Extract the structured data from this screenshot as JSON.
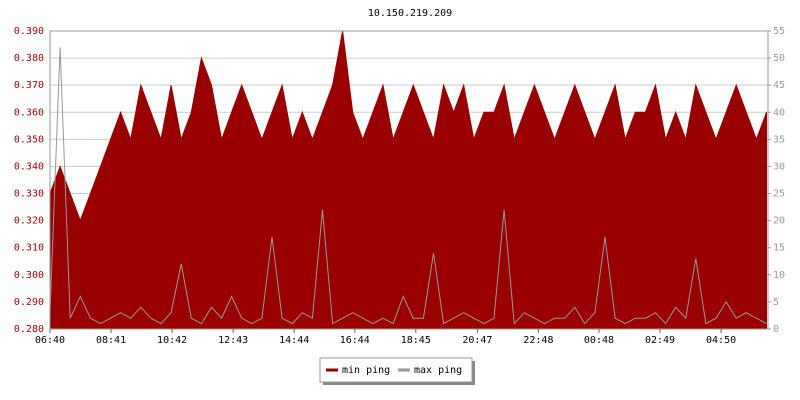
{
  "chart_data": {
    "type": "area",
    "title": "10.150.219.209",
    "x": [
      0,
      20,
      40,
      60,
      80,
      100,
      120,
      140,
      160,
      180,
      200,
      220,
      240,
      260,
      280,
      300,
      320,
      340,
      360,
      380,
      400,
      420,
      440,
      460,
      480,
      500,
      520,
      540,
      560,
      580,
      600,
      620,
      640,
      660,
      680,
      700,
      720,
      740,
      760,
      780,
      800,
      820,
      840,
      860,
      880,
      900,
      920,
      940,
      960,
      980,
      1000,
      1020,
      1040,
      1060,
      1080,
      1100,
      1120,
      1140,
      1160,
      1180,
      1200,
      1220,
      1240,
      1260,
      1280,
      1300,
      1320,
      1340,
      1360,
      1380,
      1400,
      1420
    ],
    "xlim": [
      0,
      1423
    ],
    "xticks": [
      {
        "value": 0,
        "label": "06:40"
      },
      {
        "value": 121,
        "label": "08:41"
      },
      {
        "value": 242,
        "label": "10:42"
      },
      {
        "value": 363,
        "label": "12:43"
      },
      {
        "value": 484,
        "label": "14:44"
      },
      {
        "value": 604,
        "label": "16:44"
      },
      {
        "value": 725,
        "label": "18:45"
      },
      {
        "value": 847,
        "label": "20:47"
      },
      {
        "value": 968,
        "label": "22:48"
      },
      {
        "value": 1088,
        "label": "00:48"
      },
      {
        "value": 1209,
        "label": "02:49"
      },
      {
        "value": 1330,
        "label": "04:50"
      }
    ],
    "ylim": [
      0.28,
      0.39
    ],
    "yticks": [
      {
        "value": 0.28,
        "label": "0.280"
      },
      {
        "value": 0.29,
        "label": "0.290"
      },
      {
        "value": 0.3,
        "label": "0.300"
      },
      {
        "value": 0.31,
        "label": "0.310"
      },
      {
        "value": 0.32,
        "label": "0.320"
      },
      {
        "value": 0.33,
        "label": "0.330"
      },
      {
        "value": 0.34,
        "label": "0.340"
      },
      {
        "value": 0.35,
        "label": "0.350"
      },
      {
        "value": 0.36,
        "label": "0.360"
      },
      {
        "value": 0.37,
        "label": "0.370"
      },
      {
        "value": 0.38,
        "label": "0.380"
      },
      {
        "value": 0.39,
        "label": "0.390"
      }
    ],
    "y2lim": [
      0,
      55
    ],
    "y2ticks": [
      0,
      5,
      10,
      15,
      20,
      25,
      30,
      35,
      40,
      45,
      50,
      55
    ],
    "grid": true,
    "legend": "bottom",
    "series": [
      {
        "name": "min ping",
        "color": "#990000",
        "filled": true,
        "values": [
          0.33,
          0.34,
          0.33,
          0.32,
          0.33,
          0.34,
          0.35,
          0.36,
          0.35,
          0.37,
          0.36,
          0.35,
          0.37,
          0.35,
          0.36,
          0.38,
          0.37,
          0.35,
          0.36,
          0.37,
          0.36,
          0.35,
          0.36,
          0.37,
          0.35,
          0.36,
          0.35,
          0.36,
          0.37,
          0.39,
          0.36,
          0.35,
          0.36,
          0.37,
          0.35,
          0.36,
          0.37,
          0.36,
          0.35,
          0.37,
          0.36,
          0.37,
          0.35,
          0.36,
          0.36,
          0.37,
          0.35,
          0.36,
          0.37,
          0.36,
          0.35,
          0.36,
          0.37,
          0.36,
          0.35,
          0.36,
          0.37,
          0.35,
          0.36,
          0.36,
          0.37,
          0.35,
          0.36,
          0.35,
          0.37,
          0.36,
          0.35,
          0.36,
          0.37,
          0.36,
          0.35,
          0.36
        ]
      },
      {
        "name": "max ping",
        "color": "#999999",
        "filled": false,
        "axis": "y2",
        "values": [
          3,
          52,
          2,
          6,
          2,
          1,
          2,
          3,
          2,
          4,
          2,
          1,
          3,
          12,
          2,
          1,
          4,
          2,
          6,
          2,
          1,
          2,
          17,
          2,
          1,
          3,
          2,
          22,
          1,
          2,
          3,
          2,
          1,
          2,
          1,
          6,
          2,
          2,
          14,
          1,
          2,
          3,
          2,
          1,
          2,
          22,
          1,
          3,
          2,
          1,
          2,
          2,
          4,
          1,
          3,
          17,
          2,
          1,
          2,
          2,
          3,
          1,
          4,
          2,
          13,
          1,
          2,
          5,
          2,
          3,
          2,
          1
        ]
      }
    ]
  }
}
